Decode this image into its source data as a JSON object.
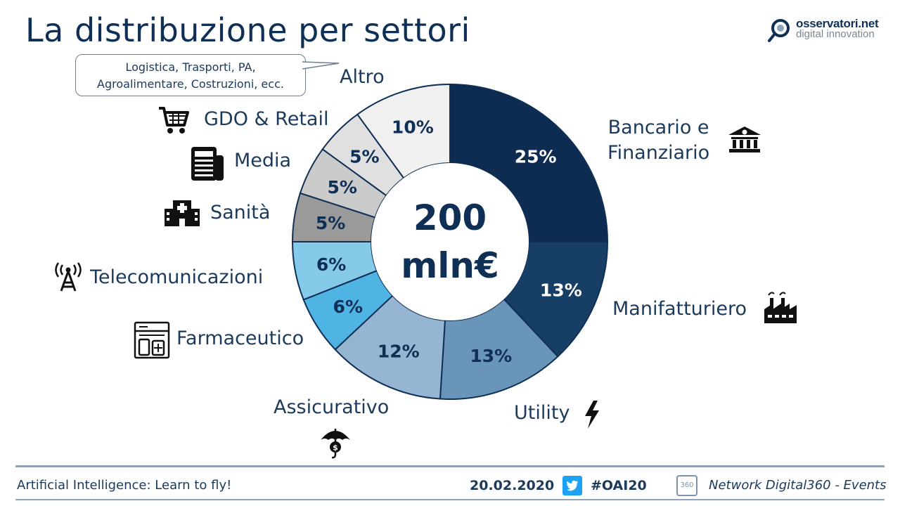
{
  "title": "La distribuzione per settori",
  "logo": {
    "name": "osservatori.net",
    "tagline": "digital innovation"
  },
  "callout": {
    "line1": "Logistica, Trasporti, PA,",
    "line2": "Agroalimentare, Costruzioni, ecc."
  },
  "center": {
    "value": "200",
    "unit": "mln€"
  },
  "labels": {
    "altro": "Altro",
    "gdo": "GDO & Retail",
    "media": "Media",
    "sanita": "Sanità",
    "telecom": "Telecomunicazioni",
    "farma": "Farmaceutico",
    "assicurativo": "Assicurativo",
    "utility": "Utility",
    "manifatturiero": "Manifatturiero",
    "bancario_line1": "Bancario e",
    "bancario_line2": "Finanziario"
  },
  "chart_data": {
    "type": "pie",
    "title": "La distribuzione per settori",
    "center_label": "200 mln€",
    "categories": [
      "Bancario e Finanziario",
      "Manifatturiero",
      "Utility",
      "Assicurativo",
      "Farmaceutico",
      "Telecomunicazioni",
      "Sanità",
      "Media",
      "GDO & Retail",
      "Altro"
    ],
    "values": [
      25,
      13,
      13,
      12,
      6,
      6,
      5,
      5,
      5,
      10
    ],
    "value_labels": [
      "25%",
      "13%",
      "13%",
      "12%",
      "6%",
      "6%",
      "5%",
      "5%",
      "5%",
      "10%"
    ],
    "colors": [
      "#0e2c52",
      "#173f66",
      "#6995b9",
      "#95b5d3",
      "#4fb3e4",
      "#86caea",
      "#9a9a9a",
      "#cbcbcb",
      "#e0e0e0",
      "#f0f0f0"
    ],
    "label_colors": [
      "#ffffff",
      "#ffffff",
      "#0f2f55",
      "#0f2f55",
      "#0f2f55",
      "#0f2f55",
      "#0f2f55",
      "#0f2f55",
      "#0f2f55",
      "#0f2f55"
    ]
  },
  "footer": {
    "left": "Artificial Intelligence: Learn to fly!",
    "date": "20.02.2020",
    "hashtag": "#OAI20",
    "network": "Network Digital360 - Events",
    "badge": "360"
  }
}
